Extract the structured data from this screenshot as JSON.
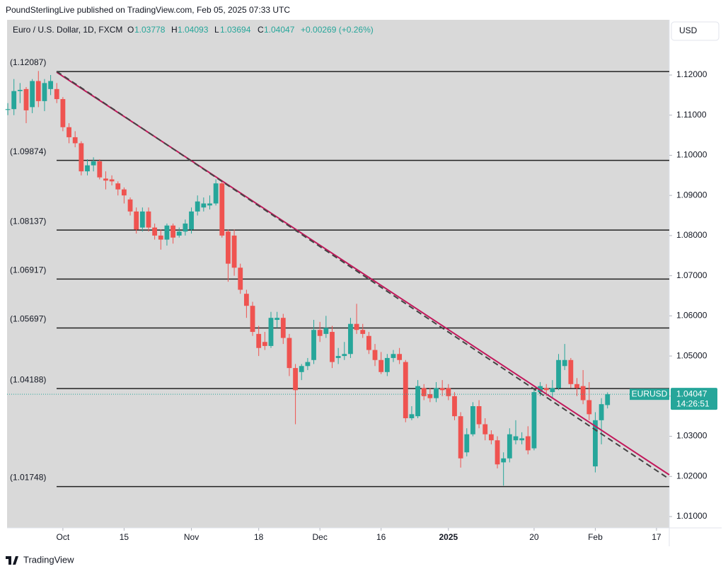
{
  "header": {
    "publisher": "PoundSterlingLive published on TradingView.com, Feb 05, 2025 07:33 UTC",
    "symbol": "Euro / U.S. Dollar, 1D, FXCM",
    "o": "O",
    "h": "H",
    "l": "L",
    "c": "C",
    "change": "+0.00269 (+0.26%)",
    "currency": "USD",
    "tag": "EURUSD",
    "countdown": "14:26:51",
    "brand": "TradingView"
  },
  "chart_data": {
    "type": "candlestick",
    "up_color": "#26a69a",
    "down_color": "#ef5350",
    "xlim": [
      -0.12,
      108.09
    ],
    "ylim": [
      1.00718,
      1.13375
    ],
    "xticks": [
      {
        "value": 9,
        "label": "Oct"
      },
      {
        "value": 19,
        "label": "15"
      },
      {
        "value": 30,
        "label": "Nov"
      },
      {
        "value": 41,
        "label": "18"
      },
      {
        "value": 51,
        "label": "Dec"
      },
      {
        "value": 61,
        "label": "16"
      },
      {
        "value": 72,
        "label": "2025"
      },
      {
        "value": 86,
        "label": "20"
      },
      {
        "value": 96,
        "label": "Feb"
      },
      {
        "value": 106,
        "label": "17"
      }
    ],
    "yticks": [
      {
        "value": 1.12,
        "label": "1.12000"
      },
      {
        "value": 1.11,
        "label": "1.11000"
      },
      {
        "value": 1.1,
        "label": "1.10000"
      },
      {
        "value": 1.09,
        "label": "1.09000"
      },
      {
        "value": 1.08,
        "label": "1.08000"
      },
      {
        "value": 1.07,
        "label": "1.07000"
      },
      {
        "value": 1.06,
        "label": "1.06000"
      },
      {
        "value": 1.05,
        "label": "1.05000"
      },
      {
        "value": 1.04,
        "label": "1.04000"
      },
      {
        "value": 1.03,
        "label": "1.03000"
      },
      {
        "value": 1.02,
        "label": "1.02000"
      },
      {
        "value": 1.01,
        "label": "1.01000"
      }
    ],
    "levels": [
      {
        "value": 1.12087,
        "label": "(1.12087)"
      },
      {
        "value": 1.09874,
        "label": "(1.09874)"
      },
      {
        "value": 1.08137,
        "label": "(1.08137)"
      },
      {
        "value": 1.06917,
        "label": "(1.06917)"
      },
      {
        "value": 1.05697,
        "label": "(1.05697)"
      },
      {
        "value": 1.04188,
        "label": "(1.04188)"
      },
      {
        "value": 1.01748,
        "label": "(1.01748)"
      }
    ],
    "trendlines": [
      {
        "color": "#c2185b",
        "dashed": false,
        "x": [
          7.98,
          108.09
        ],
        "y": [
          1.1207,
          1.0204
        ]
      },
      {
        "color": "#444444",
        "dashed": true,
        "x": [
          7.98,
          108.09
        ],
        "y": [
          1.1209,
          1.01935
        ]
      }
    ],
    "open": [
      1.1113,
      1.1115,
      1.116,
      1.1165,
      1.112,
      1.1185,
      1.1135,
      1.1165,
      1.1165,
      1.114,
      1.107,
      1.1045,
      1.103,
      1.096,
      1.0975,
      1.0985,
      1.0942,
      1.094,
      1.093,
      1.0915,
      1.089,
      1.086,
      1.082,
      1.086,
      1.082,
      1.08,
      1.079,
      1.0825,
      1.08,
      1.081,
      1.0815,
      1.086,
      1.087,
      1.0875,
      1.088,
      1.093,
      1.081,
      1.08,
      1.072,
      1.0655,
      1.0625,
      1.0555,
      1.0535,
      1.0525,
      1.059,
      1.0595,
      1.0545,
      1.047,
      1.046,
      1.0475,
      1.049,
      1.0565,
      1.0555,
      1.056,
      1.0495,
      1.05,
      1.0505,
      1.058,
      1.0565,
      1.055,
      1.0515,
      1.049,
      1.046,
      1.0495,
      1.0505,
      1.0485,
      1.0345,
      1.035,
      1.042,
      1.0405,
      1.0395,
      1.042,
      1.042,
      1.04,
      1.035,
      1.026,
      1.0305,
      1.0375,
      1.033,
      1.0305,
      1.029,
      1.0235,
      1.0245,
      1.029,
      1.029,
      1.03,
      1.027,
      1.041,
      1.042,
      1.041,
      1.042,
      1.0475,
      1.049,
      1.043,
      1.0425,
      1.039,
      1.0225,
      1.034,
      1.03778
    ],
    "high": [
      1.113,
      1.119,
      1.118,
      1.117,
      1.119,
      1.121,
      1.119,
      1.12,
      1.118,
      1.1145,
      1.108,
      1.106,
      1.1035,
      1.099,
      1.0995,
      1.099,
      1.096,
      1.095,
      1.0935,
      1.092,
      1.0895,
      1.087,
      1.087,
      1.087,
      1.083,
      1.0815,
      1.083,
      1.083,
      1.082,
      1.084,
      1.087,
      1.09,
      1.0895,
      1.09,
      1.094,
      1.0935,
      1.0815,
      1.0815,
      1.073,
      1.0665,
      1.0635,
      1.0575,
      1.056,
      1.061,
      1.061,
      1.0605,
      1.0555,
      1.048,
      1.048,
      1.0495,
      1.059,
      1.0585,
      1.06,
      1.0575,
      1.052,
      1.0535,
      1.0595,
      1.063,
      1.058,
      1.056,
      1.053,
      1.051,
      1.0505,
      1.0515,
      1.052,
      1.049,
      1.0375,
      1.044,
      1.043,
      1.042,
      1.0435,
      1.044,
      1.043,
      1.041,
      1.036,
      1.032,
      1.0385,
      1.039,
      1.0345,
      1.0315,
      1.03,
      1.026,
      1.032,
      1.034,
      1.031,
      1.0325,
      1.042,
      1.0435,
      1.043,
      1.044,
      1.0505,
      1.053,
      1.0495,
      1.0445,
      1.0465,
      1.0435,
      1.036,
      1.0395,
      1.04093
    ],
    "low": [
      1.11,
      1.11,
      1.113,
      1.108,
      1.1105,
      1.112,
      1.111,
      1.115,
      1.113,
      1.106,
      1.103,
      1.102,
      1.095,
      1.095,
      1.096,
      1.094,
      1.0915,
      1.0925,
      1.09,
      1.088,
      1.085,
      1.0805,
      1.081,
      1.081,
      1.079,
      1.0765,
      1.0775,
      1.078,
      1.0795,
      1.08,
      1.0805,
      1.085,
      1.086,
      1.0865,
      1.0875,
      1.0795,
      1.0685,
      1.07,
      1.0655,
      1.0595,
      1.055,
      1.05,
      1.0515,
      1.052,
      1.057,
      1.053,
      1.045,
      1.033,
      1.044,
      1.0465,
      1.048,
      1.0535,
      1.0545,
      1.047,
      1.048,
      1.049,
      1.0495,
      1.0555,
      1.0545,
      1.0505,
      1.0475,
      1.0455,
      1.045,
      1.0485,
      1.048,
      1.0335,
      1.034,
      1.0345,
      1.039,
      1.0385,
      1.0385,
      1.04,
      1.039,
      1.034,
      1.0222,
      1.025,
      1.03,
      1.032,
      1.029,
      1.028,
      1.022,
      1.0177,
      1.0235,
      1.028,
      1.028,
      1.0255,
      1.0265,
      1.04,
      1.04,
      1.0395,
      1.0415,
      1.0465,
      1.042,
      1.04,
      1.038,
      1.034,
      1.021,
      1.028,
      1.03694
    ],
    "close": [
      1.1115,
      1.116,
      1.1163,
      1.1112,
      1.1185,
      1.1135,
      1.118,
      1.1185,
      1.114,
      1.107,
      1.1045,
      1.103,
      1.096,
      1.0975,
      1.0985,
      1.0945,
      1.0937,
      1.0935,
      1.0915,
      1.09,
      1.086,
      1.0815,
      1.086,
      1.082,
      1.08,
      1.079,
      1.0825,
      1.0795,
      1.081,
      1.083,
      1.086,
      1.0885,
      1.088,
      1.088,
      1.093,
      1.08,
      1.073,
      1.072,
      1.0665,
      1.0625,
      1.056,
      1.052,
      1.0525,
      1.0595,
      1.0595,
      1.0545,
      1.047,
      1.0415,
      1.0475,
      1.0485,
      1.0565,
      1.055,
      1.057,
      1.0485,
      1.05,
      1.0505,
      1.058,
      1.0565,
      1.0555,
      1.0515,
      1.049,
      1.046,
      1.0495,
      1.0505,
      1.049,
      1.0345,
      1.0355,
      1.0425,
      1.04,
      1.0395,
      1.042,
      1.0415,
      1.04,
      1.035,
      1.0245,
      1.0305,
      1.0375,
      1.033,
      1.0305,
      1.029,
      1.023,
      1.0245,
      1.0305,
      1.03,
      1.0295,
      1.0265,
      1.041,
      1.0425,
      1.0415,
      1.042,
      1.049,
      1.049,
      1.043,
      1.042,
      1.039,
      1.0355,
      1.034,
      1.038,
      1.04047
    ]
  }
}
